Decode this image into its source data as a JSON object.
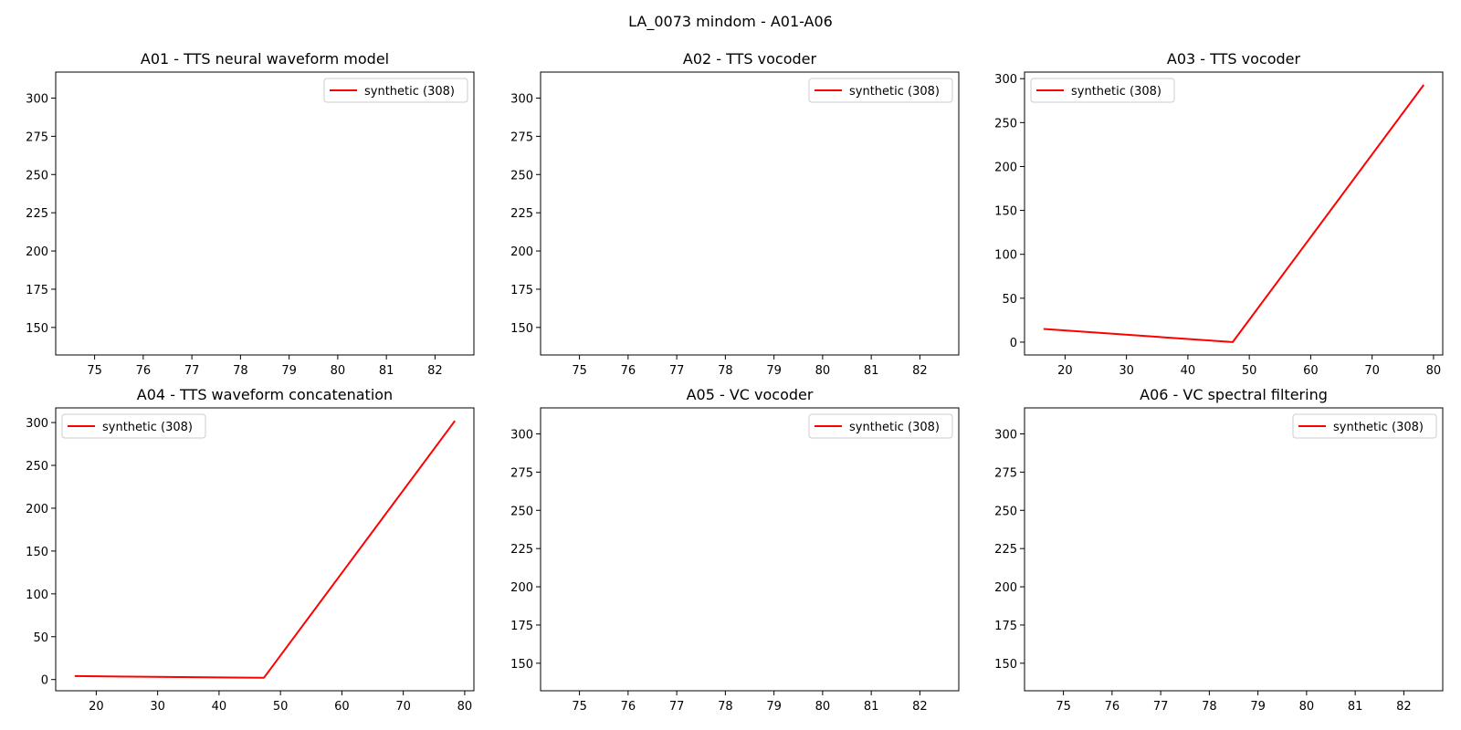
{
  "figure": {
    "suptitle": "LA_0073 mindom - A01-A06"
  },
  "chart_data": [
    {
      "type": "line",
      "title": "A01 - TTS neural waveform model",
      "xlabel": "",
      "ylabel": "",
      "xlim": [
        74.2,
        82.8
      ],
      "ylim": [
        132,
        317
      ],
      "xticks": [
        75,
        76,
        77,
        78,
        79,
        80,
        81,
        82
      ],
      "yticks": [
        150,
        175,
        200,
        225,
        250,
        275,
        300
      ],
      "legend_loc": "upper right",
      "series": [
        {
          "name": "synthetic (308)",
          "color": "#ff0000",
          "x": [],
          "y": []
        }
      ]
    },
    {
      "type": "line",
      "title": "A02 - TTS vocoder",
      "xlabel": "",
      "ylabel": "",
      "xlim": [
        74.2,
        82.8
      ],
      "ylim": [
        132,
        317
      ],
      "xticks": [
        75,
        76,
        77,
        78,
        79,
        80,
        81,
        82
      ],
      "yticks": [
        150,
        175,
        200,
        225,
        250,
        275,
        300
      ],
      "legend_loc": "upper right",
      "series": [
        {
          "name": "synthetic (308)",
          "color": "#ff0000",
          "x": [],
          "y": []
        }
      ]
    },
    {
      "type": "line",
      "title": "A03 - TTS vocoder",
      "xlabel": "",
      "ylabel": "",
      "xlim": [
        13.4,
        81.5
      ],
      "ylim": [
        -14.6,
        307.5
      ],
      "xticks": [
        20,
        30,
        40,
        50,
        60,
        70,
        80
      ],
      "yticks": [
        0,
        50,
        100,
        150,
        200,
        250,
        300
      ],
      "legend_loc": "upper left",
      "series": [
        {
          "name": "synthetic (308)",
          "color": "#ff0000",
          "x": [
            16.5,
            47.3,
            78.4
          ],
          "y": [
            15,
            0,
            293
          ]
        }
      ]
    },
    {
      "type": "line",
      "title": "A04 - TTS waveform concatenation",
      "xlabel": "",
      "ylabel": "",
      "xlim": [
        13.4,
        81.5
      ],
      "ylim": [
        -13.1,
        317.1
      ],
      "xticks": [
        20,
        30,
        40,
        50,
        60,
        70,
        80
      ],
      "yticks": [
        0,
        50,
        100,
        150,
        200,
        250,
        300
      ],
      "legend_loc": "upper left",
      "series": [
        {
          "name": "synthetic (308)",
          "color": "#ff0000",
          "x": [
            16.5,
            47.3,
            78.4
          ],
          "y": [
            4,
            2,
            302
          ]
        }
      ]
    },
    {
      "type": "line",
      "title": "A05 - VC vocoder",
      "xlabel": "",
      "ylabel": "",
      "xlim": [
        74.2,
        82.8
      ],
      "ylim": [
        132,
        317
      ],
      "xticks": [
        75,
        76,
        77,
        78,
        79,
        80,
        81,
        82
      ],
      "yticks": [
        150,
        175,
        200,
        225,
        250,
        275,
        300
      ],
      "legend_loc": "upper right",
      "series": [
        {
          "name": "synthetic (308)",
          "color": "#ff0000",
          "x": [],
          "y": []
        }
      ]
    },
    {
      "type": "line",
      "title": "A06 - VC spectral filtering",
      "xlabel": "",
      "ylabel": "",
      "xlim": [
        74.2,
        82.8
      ],
      "ylim": [
        132,
        317
      ],
      "xticks": [
        75,
        76,
        77,
        78,
        79,
        80,
        81,
        82
      ],
      "yticks": [
        150,
        175,
        200,
        225,
        250,
        275,
        300
      ],
      "legend_loc": "upper right",
      "series": [
        {
          "name": "synthetic (308)",
          "color": "#ff0000",
          "x": [],
          "y": []
        }
      ]
    }
  ]
}
